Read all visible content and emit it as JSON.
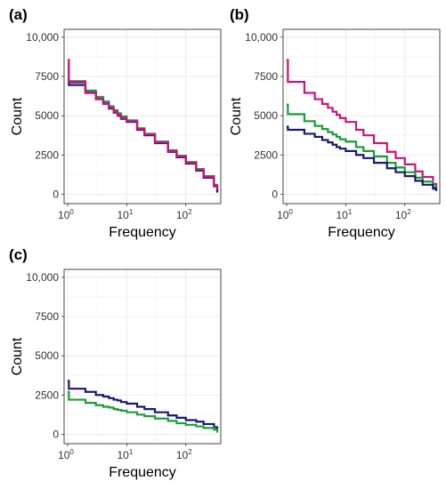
{
  "chart_data": [
    {
      "type": "line",
      "panel": "(a)",
      "xlabel": "Frequency",
      "ylabel": "Count",
      "x_scale": "log10",
      "xlim": [
        1,
        340
      ],
      "ylim": [
        0,
        10000
      ],
      "x_ticks": [
        {
          "base": "10",
          "exp": "0",
          "value": 1
        },
        {
          "base": "10",
          "exp": "1",
          "value": 10
        },
        {
          "base": "10",
          "exp": "2",
          "value": 100
        }
      ],
      "y_ticks": [
        {
          "label": "0",
          "value": 0
        },
        {
          "label": "2500",
          "value": 2500
        },
        {
          "label": "5000",
          "value": 5000
        },
        {
          "label": "7500",
          "value": 7500
        },
        {
          "label": "10,000",
          "value": 10000
        }
      ],
      "grid": true,
      "legend": "none",
      "series": [
        {
          "color": "#1a9e3a",
          "points": [
            [
              1,
              8300
            ],
            [
              1.05,
              7200
            ],
            [
              2,
              6600
            ],
            [
              3,
              6200
            ],
            [
              4,
              5900
            ],
            [
              5,
              5600
            ],
            [
              6,
              5350
            ],
            [
              7,
              5150
            ],
            [
              8,
              4950
            ],
            [
              10,
              4700
            ],
            [
              15,
              4200
            ],
            [
              20,
              3850
            ],
            [
              30,
              3350
            ],
            [
              50,
              2800
            ],
            [
              70,
              2450
            ],
            [
              100,
              2050
            ],
            [
              150,
              1600
            ],
            [
              200,
              1150
            ],
            [
              300,
              600
            ],
            [
              340,
              150
            ]
          ]
        },
        {
          "color": "#4f63a8",
          "points": [
            [
              1,
              8000
            ],
            [
              1.05,
              7100
            ],
            [
              2,
              6500
            ],
            [
              3,
              6100
            ],
            [
              4,
              5800
            ],
            [
              5,
              5500
            ],
            [
              6,
              5250
            ],
            [
              7,
              5050
            ],
            [
              8,
              4850
            ],
            [
              10,
              4650
            ],
            [
              15,
              4150
            ],
            [
              20,
              3800
            ],
            [
              30,
              3300
            ],
            [
              50,
              2750
            ],
            [
              70,
              2400
            ],
            [
              100,
              2000
            ],
            [
              150,
              1550
            ],
            [
              200,
              1100
            ],
            [
              300,
              550
            ],
            [
              340,
              120
            ]
          ]
        },
        {
          "color": "#1a1a6e",
          "points": [
            [
              1,
              7300
            ],
            [
              1.05,
              6950
            ],
            [
              2,
              6450
            ],
            [
              3,
              6050
            ],
            [
              4,
              5750
            ],
            [
              5,
              5450
            ],
            [
              6,
              5200
            ],
            [
              7,
              5000
            ],
            [
              8,
              4800
            ],
            [
              10,
              4600
            ],
            [
              15,
              4100
            ],
            [
              20,
              3750
            ],
            [
              30,
              3250
            ],
            [
              50,
              2700
            ],
            [
              70,
              2350
            ],
            [
              100,
              1950
            ],
            [
              150,
              1500
            ],
            [
              200,
              1050
            ],
            [
              300,
              500
            ],
            [
              340,
              100
            ]
          ]
        },
        {
          "color": "#c8157a",
          "points": [
            [
              1,
              8550
            ],
            [
              1.05,
              7150
            ],
            [
              2,
              6450
            ],
            [
              3,
              6050
            ],
            [
              4,
              5750
            ],
            [
              5,
              5500
            ],
            [
              6,
              5250
            ],
            [
              7,
              5050
            ],
            [
              8,
              4850
            ],
            [
              10,
              4650
            ],
            [
              15,
              4150
            ],
            [
              20,
              3800
            ],
            [
              30,
              3300
            ],
            [
              50,
              2750
            ],
            [
              70,
              2400
            ],
            [
              100,
              2000
            ],
            [
              150,
              1550
            ],
            [
              200,
              1100
            ],
            [
              300,
              550
            ],
            [
              340,
              300
            ]
          ]
        }
      ]
    },
    {
      "type": "line",
      "panel": "(b)",
      "xlabel": "Frequency",
      "ylabel": "Count",
      "x_scale": "log10",
      "xlim": [
        1,
        340
      ],
      "ylim": [
        0,
        10000
      ],
      "x_ticks": [
        {
          "base": "10",
          "exp": "0",
          "value": 1
        },
        {
          "base": "10",
          "exp": "1",
          "value": 10
        },
        {
          "base": "10",
          "exp": "2",
          "value": 100
        }
      ],
      "y_ticks": [
        {
          "label": "0",
          "value": 0
        },
        {
          "label": "2500",
          "value": 2500
        },
        {
          "label": "5000",
          "value": 5000
        },
        {
          "label": "7500",
          "value": 7500
        },
        {
          "label": "10,000",
          "value": 10000
        }
      ],
      "grid": true,
      "legend": "none",
      "series": [
        {
          "color": "#c8157a",
          "points": [
            [
              1,
              8550
            ],
            [
              1.05,
              7150
            ],
            [
              2,
              6450
            ],
            [
              3,
              6050
            ],
            [
              4,
              5750
            ],
            [
              5,
              5500
            ],
            [
              6,
              5250
            ],
            [
              7,
              5050
            ],
            [
              8,
              4850
            ],
            [
              10,
              4600
            ],
            [
              15,
              4100
            ],
            [
              20,
              3750
            ],
            [
              30,
              3250
            ],
            [
              50,
              2700
            ],
            [
              70,
              2300
            ],
            [
              100,
              1900
            ],
            [
              150,
              1450
            ],
            [
              200,
              1100
            ],
            [
              300,
              650
            ],
            [
              340,
              350
            ]
          ]
        },
        {
          "color": "#1a9e3a",
          "points": [
            [
              1,
              5700
            ],
            [
              1.05,
              5100
            ],
            [
              2,
              4650
            ],
            [
              3,
              4350
            ],
            [
              4,
              4150
            ],
            [
              5,
              3950
            ],
            [
              6,
              3800
            ],
            [
              7,
              3650
            ],
            [
              8,
              3500
            ],
            [
              10,
              3350
            ],
            [
              15,
              3000
            ],
            [
              20,
              2750
            ],
            [
              30,
              2400
            ],
            [
              50,
              2000
            ],
            [
              70,
              1700
            ],
            [
              100,
              1400
            ],
            [
              150,
              1050
            ],
            [
              200,
              800
            ],
            [
              300,
              450
            ],
            [
              340,
              250
            ]
          ]
        },
        {
          "color": "#1a1a6e",
          "points": [
            [
              1,
              4300
            ],
            [
              1.05,
              4100
            ],
            [
              2,
              3850
            ],
            [
              3,
              3650
            ],
            [
              4,
              3450
            ],
            [
              5,
              3300
            ],
            [
              6,
              3150
            ],
            [
              7,
              3000
            ],
            [
              8,
              2900
            ],
            [
              10,
              2750
            ],
            [
              15,
              2500
            ],
            [
              20,
              2300
            ],
            [
              30,
              2000
            ],
            [
              50,
              1650
            ],
            [
              70,
              1400
            ],
            [
              100,
              1150
            ],
            [
              150,
              850
            ],
            [
              200,
              600
            ],
            [
              300,
              350
            ],
            [
              340,
              200
            ]
          ]
        }
      ]
    },
    {
      "type": "line",
      "panel": "(c)",
      "xlabel": "Frequency",
      "ylabel": "Count",
      "x_scale": "log10",
      "xlim": [
        1,
        340
      ],
      "ylim": [
        0,
        10000
      ],
      "x_ticks": [
        {
          "base": "10",
          "exp": "0",
          "value": 1
        },
        {
          "base": "10",
          "exp": "1",
          "value": 10
        },
        {
          "base": "10",
          "exp": "2",
          "value": 100
        }
      ],
      "y_ticks": [
        {
          "label": "0",
          "value": 0
        },
        {
          "label": "2500",
          "value": 2500
        },
        {
          "label": "5000",
          "value": 5000
        },
        {
          "label": "7500",
          "value": 7500
        },
        {
          "label": "10,000",
          "value": 10000
        }
      ],
      "grid": true,
      "legend": "none",
      "series": [
        {
          "color": "#1a1a6e",
          "points": [
            [
              1,
              3400
            ],
            [
              1.05,
              2900
            ],
            [
              2,
              2700
            ],
            [
              3,
              2500
            ],
            [
              4,
              2400
            ],
            [
              5,
              2300
            ],
            [
              6,
              2200
            ],
            [
              7,
              2150
            ],
            [
              8,
              2050
            ],
            [
              10,
              1950
            ],
            [
              15,
              1750
            ],
            [
              20,
              1600
            ],
            [
              30,
              1400
            ],
            [
              50,
              1200
            ],
            [
              70,
              1050
            ],
            [
              100,
              900
            ],
            [
              150,
              800
            ],
            [
              200,
              650
            ],
            [
              300,
              450
            ],
            [
              340,
              250
            ]
          ]
        },
        {
          "color": "#1a9e3a",
          "points": [
            [
              1,
              2700
            ],
            [
              1.05,
              2200
            ],
            [
              2,
              2000
            ],
            [
              3,
              1850
            ],
            [
              4,
              1750
            ],
            [
              5,
              1700
            ],
            [
              6,
              1600
            ],
            [
              7,
              1550
            ],
            [
              8,
              1500
            ],
            [
              10,
              1400
            ],
            [
              15,
              1250
            ],
            [
              20,
              1150
            ],
            [
              30,
              1000
            ],
            [
              50,
              850
            ],
            [
              70,
              700
            ],
            [
              100,
              600
            ],
            [
              150,
              500
            ],
            [
              200,
              400
            ],
            [
              300,
              300
            ],
            [
              340,
              100
            ]
          ]
        }
      ]
    }
  ]
}
